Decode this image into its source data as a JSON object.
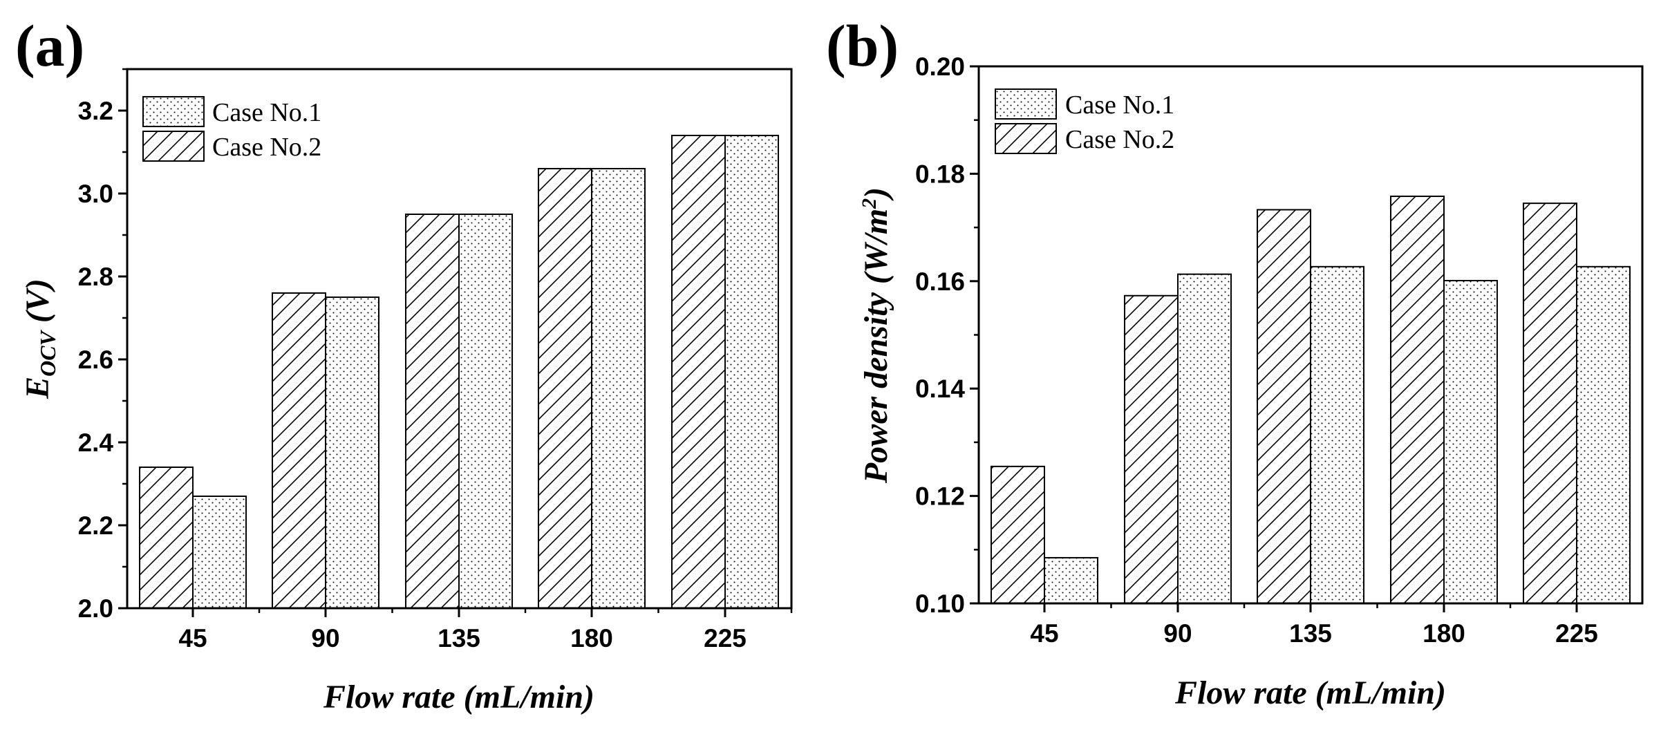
{
  "colors": {
    "stroke": "#000000",
    "background": "#ffffff"
  },
  "legend": {
    "case1": "Case No.1",
    "case2": "Case No.2"
  },
  "chart_data": [
    {
      "panel": "(a)",
      "type": "bar",
      "categories": [
        "45",
        "90",
        "135",
        "180",
        "225"
      ],
      "series": [
        {
          "name": "Case No.2",
          "pattern": "hatch",
          "values": [
            2.34,
            2.76,
            2.95,
            3.06,
            3.14
          ]
        },
        {
          "name": "Case No.1",
          "pattern": "dots",
          "values": [
            2.27,
            2.75,
            2.95,
            3.06,
            3.14
          ]
        }
      ],
      "xlabel": "Flow rate (mL/min)",
      "ylabel": {
        "main": "E",
        "sub": "OCV",
        "unit": " (V)"
      },
      "ylim": [
        2.0,
        3.3
      ],
      "yticks": [
        2.0,
        2.2,
        2.4,
        2.6,
        2.8,
        3.0,
        3.2
      ],
      "ytick_labels": [
        "2.0",
        "2.2",
        "2.4",
        "2.6",
        "2.8",
        "3.0",
        "3.2"
      ],
      "legend_position": "top-left"
    },
    {
      "panel": "(b)",
      "type": "bar",
      "categories": [
        "45",
        "90",
        "135",
        "180",
        "225"
      ],
      "series": [
        {
          "name": "Case No.2",
          "pattern": "hatch",
          "values": [
            0.1255,
            0.1573,
            0.1733,
            0.1758,
            0.1745
          ]
        },
        {
          "name": "Case No.1",
          "pattern": "dots",
          "values": [
            0.1085,
            0.1613,
            0.1627,
            0.1601,
            0.1627
          ]
        }
      ],
      "xlabel": "Flow rate (mL/min)",
      "ylabel": {
        "main": "Power density (W/m",
        "sup": "2",
        "end": ")"
      },
      "ylim": [
        0.1,
        0.2
      ],
      "yticks": [
        0.1,
        0.12,
        0.14,
        0.16,
        0.18,
        0.2
      ],
      "ytick_labels": [
        "0.10",
        "0.12",
        "0.14",
        "0.16",
        "0.18",
        "0.20"
      ],
      "legend_position": "top-left"
    }
  ]
}
